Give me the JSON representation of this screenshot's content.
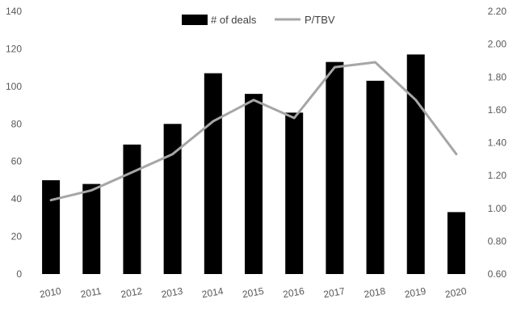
{
  "chart_data": {
    "type": "bar",
    "categories": [
      "2010",
      "2011",
      "2012",
      "2013",
      "2014",
      "2015",
      "2016",
      "2017",
      "2018",
      "2019",
      "2020"
    ],
    "series": [
      {
        "name": "# of deals",
        "type": "bar",
        "axis": "left",
        "color": "#000000",
        "values": [
          50,
          48,
          69,
          80,
          107,
          96,
          86,
          113,
          103,
          117,
          33
        ]
      },
      {
        "name": "P/TBV",
        "type": "line",
        "axis": "right",
        "color": "#a6a6a6",
        "values": [
          1.05,
          1.11,
          1.22,
          1.33,
          1.53,
          1.66,
          1.55,
          1.86,
          1.89,
          1.66,
          1.33
        ]
      }
    ],
    "y_left": {
      "min": 0,
      "max": 140,
      "ticks": [
        "0",
        "20",
        "40",
        "60",
        "80",
        "100",
        "120",
        "140"
      ]
    },
    "y_right": {
      "min": 0.6,
      "max": 2.2,
      "ticks": [
        "0.60",
        "0.80",
        "1.00",
        "1.20",
        "1.40",
        "1.60",
        "1.80",
        "2.00",
        "2.20"
      ]
    },
    "grid": false,
    "legend": "top-center"
  }
}
